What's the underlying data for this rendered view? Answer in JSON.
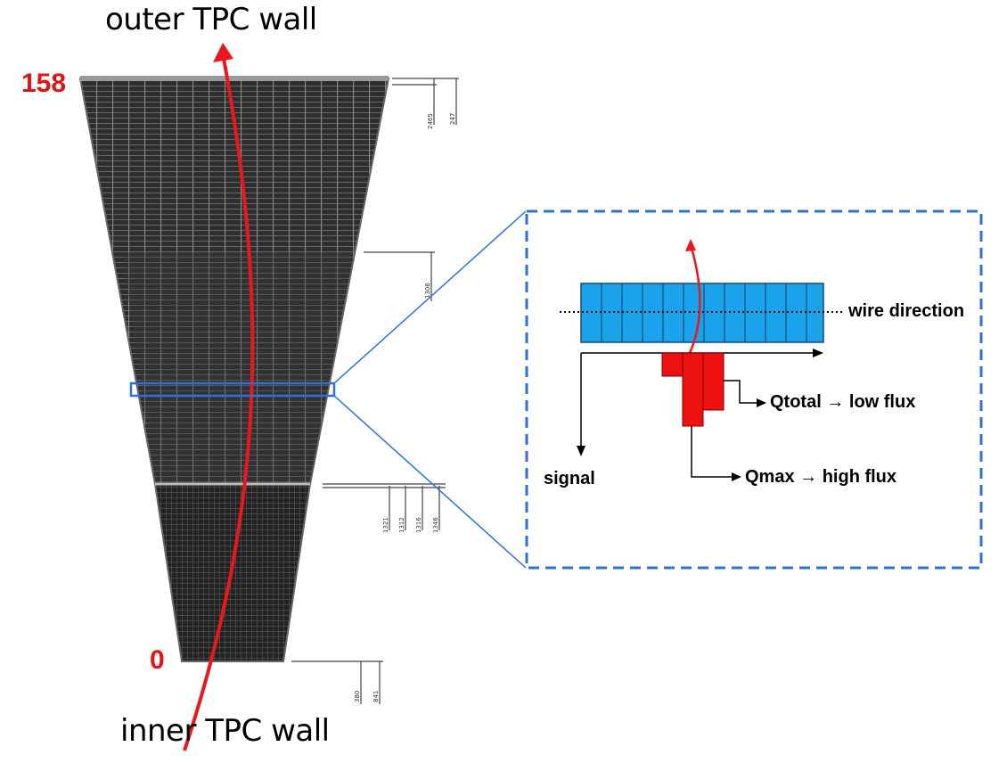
{
  "labels": {
    "outer_wall": "outer TPC wall",
    "inner_wall": "inner TPC wall",
    "row_top": "158",
    "row_bottom": "0"
  },
  "inset": {
    "wire_direction": "wire direction",
    "signal": "signal",
    "qtotal": "Qtotal → low flux",
    "qmax": "Qmax → high flux"
  },
  "dimensions": {
    "top_a": "2465",
    "top_b": "247",
    "mid": "1306",
    "lower": [
      "1321",
      "1312",
      "1316",
      "1346"
    ],
    "bottom_a": "380",
    "bottom_b": "841"
  },
  "colors": {
    "track": "#e8181c",
    "highlight": "#2f6fe0",
    "pads": "#1aa3ea",
    "signal_bars": "#ee1111",
    "sector_fill": "#2c2c2c"
  }
}
